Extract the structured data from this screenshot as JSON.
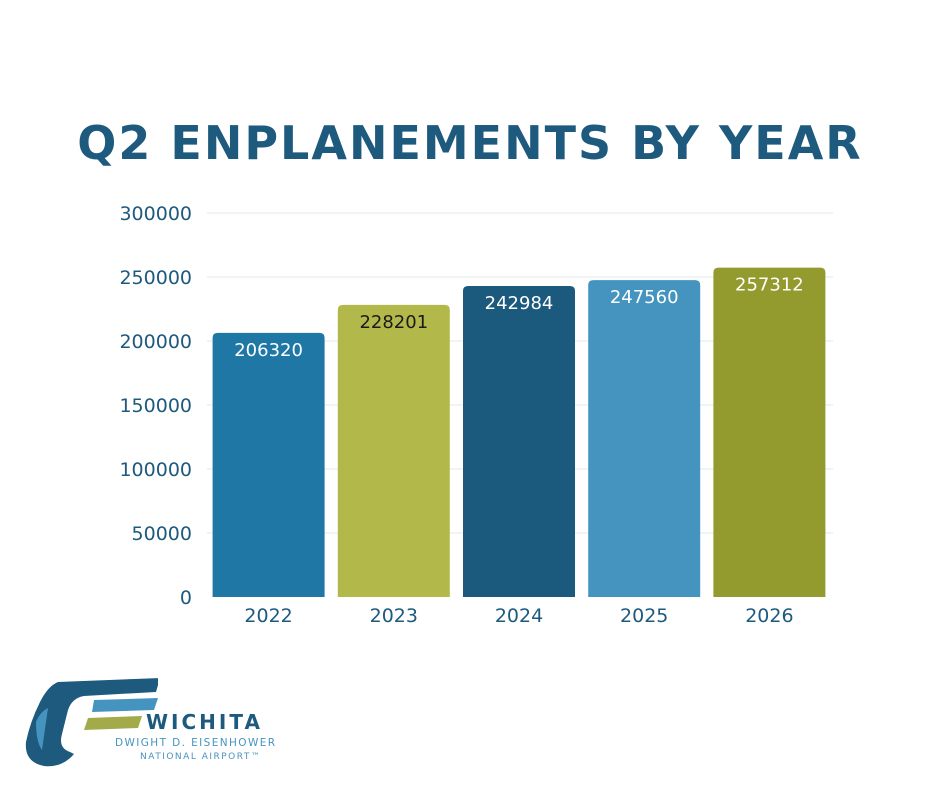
{
  "chart_data": {
    "type": "bar",
    "title": "Q2 ENPLANEMENTS BY YEAR",
    "categories": [
      "2022",
      "2023",
      "2024",
      "2025",
      "2026"
    ],
    "values": [
      206320,
      228201,
      242984,
      247560,
      257312
    ],
    "bar_colors": [
      "#1f77a6",
      "#b2b84a",
      "#1b5a7d",
      "#4594c0",
      "#939b2e"
    ],
    "label_colors": [
      "#ffffff",
      "#1a1a1a",
      "#ffffff",
      "#ffffff",
      "#ffffff"
    ],
    "ylim": [
      0,
      300000
    ],
    "yticks": [
      0,
      50000,
      100000,
      150000,
      200000,
      250000,
      300000
    ],
    "grid": true,
    "legend": "none",
    "xlabel": "",
    "ylabel": ""
  },
  "logo": {
    "name": "WICHITA",
    "line1": "DWIGHT D. EISENHOWER",
    "line2": "NATIONAL AIRPORT™"
  }
}
